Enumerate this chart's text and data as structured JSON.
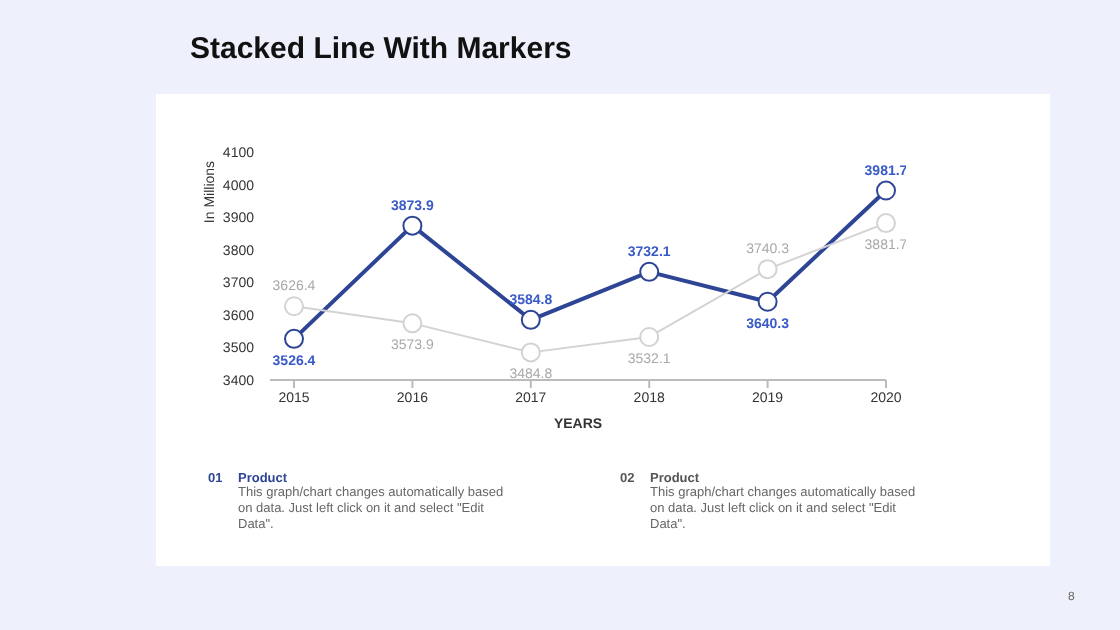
{
  "chart_data": {
    "type": "line",
    "title": "Stacked Line With Markers",
    "xlabel": "YEARS",
    "ylabel": "In Millions",
    "categories": [
      "2015",
      "2016",
      "2017",
      "2018",
      "2019",
      "2020"
    ],
    "series": [
      {
        "color": "#2e4596",
        "values": [
          3526.4,
          3873.9,
          3584.8,
          3732.1,
          3640.3,
          3981.7
        ]
      },
      {
        "color": "#d3d3d3",
        "values": [
          3626.4,
          3573.9,
          3484.8,
          3532.1,
          3740.3,
          3881.7
        ]
      }
    ],
    "ylim": [
      3400,
      4100
    ],
    "yticks": [
      3400,
      3500,
      3600,
      3700,
      3800,
      3900,
      4000,
      4100
    ],
    "marker": "circle",
    "line_style": "solid",
    "data_labels": true,
    "annotations": [
      "01",
      "Product",
      "This graph/chart changes automatically based on data. Just left click on it and select \"Edit Data\".",
      "02",
      "Product",
      "This graph/chart changes automatically based on data. Just left click on it and select \"Edit Data\".",
      "8"
    ]
  }
}
